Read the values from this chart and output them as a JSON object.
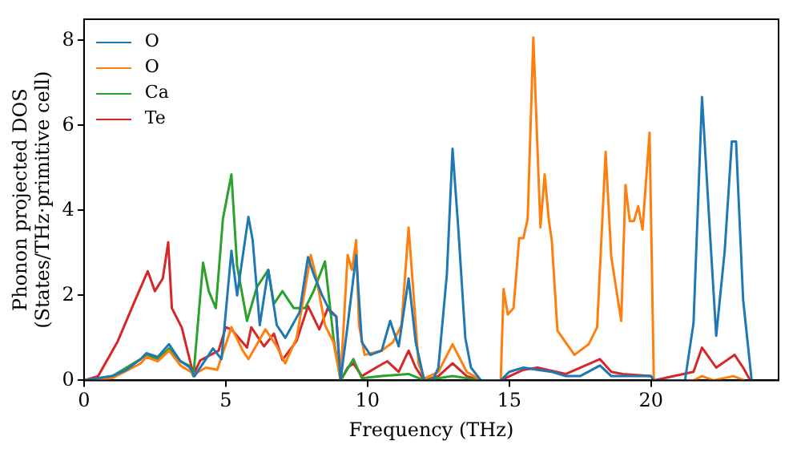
{
  "chart_data": {
    "type": "line",
    "xlabel": "Frequency (THz)",
    "ylabel": "Phonon projected DOS\n(States/THz·primitive cell)",
    "xlim": [
      0,
      24.5
    ],
    "xticks": [
      0,
      5,
      10,
      15,
      20
    ],
    "ylim": [
      0,
      8.5
    ],
    "yticks": [
      0,
      2,
      4,
      6,
      8
    ],
    "grid": false,
    "legend": "top left",
    "marker": "none",
    "line_style": "solid",
    "series": [
      {
        "name": "O",
        "color": "#1f77b4",
        "x": [
          0,
          1,
          1.5,
          2,
          2.2,
          2.6,
          3.0,
          3.4,
          3.75,
          3.9,
          4.2,
          4.55,
          4.85,
          5.2,
          5.4,
          5.8,
          5.95,
          6.2,
          6.5,
          6.8,
          7.1,
          7.6,
          7.9,
          8.1,
          8.4,
          8.7,
          8.9,
          9.05,
          9.3,
          9.6,
          9.8,
          10.1,
          10.5,
          10.8,
          11.1,
          11.45,
          11.7,
          12.0,
          12.3,
          12.5,
          12.8,
          13.0,
          13.2,
          13.45,
          13.65,
          14.0,
          14.7,
          15.0,
          15.5,
          16.0,
          16.5,
          17.0,
          17.5,
          18.2,
          18.6,
          19.0,
          19.5,
          20.0,
          20.1,
          21.2,
          21.5,
          21.8,
          22.1,
          22.3,
          22.6,
          22.85,
          23.0,
          23.25,
          23.55
        ],
        "values": [
          0,
          0.1,
          0.25,
          0.5,
          0.64,
          0.55,
          0.85,
          0.45,
          0.3,
          0.1,
          0.4,
          0.75,
          0.5,
          3.05,
          2.0,
          3.85,
          3.3,
          1.3,
          2.6,
          1.3,
          1.0,
          1.6,
          2.9,
          2.5,
          2.0,
          1.6,
          1.5,
          0,
          1.3,
          2.95,
          0.9,
          0.6,
          0.7,
          1.4,
          0.8,
          2.4,
          0.9,
          0,
          0,
          0.3,
          2.5,
          5.45,
          3.6,
          1.0,
          0.3,
          0,
          0,
          0.2,
          0.3,
          0.25,
          0.2,
          0.1,
          0.1,
          0.35,
          0.1,
          0.1,
          0.1,
          0.1,
          0,
          0,
          1.35,
          6.67,
          3.25,
          1.05,
          3.05,
          5.62,
          5.62,
          1.9,
          0
        ]
      },
      {
        "name": "O",
        "color": "#ff7f0e",
        "x": [
          0,
          1,
          2,
          2.2,
          2.6,
          3.0,
          3.4,
          3.9,
          4.3,
          4.7,
          5.2,
          5.6,
          5.8,
          6.4,
          6.8,
          7.1,
          7.5,
          8.0,
          8.2,
          8.5,
          8.8,
          9.05,
          9.3,
          9.45,
          9.6,
          9.7,
          9.9,
          10.5,
          10.9,
          11.2,
          11.45,
          11.6,
          11.8,
          12.0,
          12.5,
          13.0,
          13.5,
          14.0,
          14.7,
          14.8,
          14.95,
          15.15,
          15.35,
          15.5,
          15.65,
          15.85,
          16.1,
          16.25,
          16.4,
          16.5,
          16.7,
          17.3,
          17.8,
          18.1,
          18.4,
          18.6,
          18.95,
          19.1,
          19.25,
          19.4,
          19.55,
          19.7,
          19.95,
          20.1,
          21.5,
          21.8,
          22.2,
          22.9,
          23.3
        ],
        "values": [
          0,
          0.05,
          0.4,
          0.55,
          0.45,
          0.7,
          0.35,
          0.15,
          0.3,
          0.25,
          1.25,
          0.7,
          0.5,
          1.2,
          0.8,
          0.4,
          1.0,
          2.95,
          2.4,
          1.3,
          0.9,
          0,
          2.95,
          2.6,
          3.3,
          1.3,
          0.6,
          0.7,
          0.9,
          1.3,
          3.6,
          2.25,
          0.4,
          0.04,
          0.2,
          0.85,
          0.2,
          0,
          0,
          2.15,
          1.55,
          1.7,
          3.35,
          3.35,
          3.8,
          8.07,
          3.6,
          4.85,
          3.75,
          3.3,
          1.17,
          0.6,
          0.85,
          1.25,
          5.38,
          2.9,
          1.4,
          4.6,
          3.75,
          3.75,
          4.1,
          3.55,
          5.83,
          0,
          0,
          0.1,
          0,
          0.1,
          0
        ]
      },
      {
        "name": "Ca",
        "color": "#2ca02c",
        "x": [
          0,
          1,
          2,
          2.2,
          2.6,
          3.0,
          3.4,
          3.7,
          3.86,
          4.2,
          4.4,
          4.65,
          4.9,
          5.2,
          5.4,
          5.75,
          6.1,
          6.5,
          6.7,
          7.0,
          7.4,
          7.8,
          8.1,
          8.5,
          8.8,
          9.05,
          9.5,
          9.8,
          10.5,
          11.45,
          12.0,
          13.0,
          14.0
        ],
        "values": [
          0,
          0.1,
          0.5,
          0.6,
          0.5,
          0.75,
          0.45,
          0.35,
          0.1,
          2.77,
          2.1,
          1.7,
          3.8,
          4.85,
          2.7,
          1.4,
          2.2,
          2.6,
          1.8,
          2.1,
          1.7,
          1.7,
          2.1,
          2.8,
          1.0,
          0,
          0.5,
          0.05,
          0.1,
          0.15,
          0,
          0.1,
          0
        ]
      },
      {
        "name": "Te",
        "color": "#d62728",
        "x": [
          0,
          0.5,
          1.19,
          1.78,
          2.25,
          2.5,
          2.78,
          2.97,
          3.1,
          3.45,
          3.65,
          3.86,
          4.1,
          4.75,
          5.0,
          5.2,
          5.75,
          5.9,
          6.35,
          6.7,
          7.0,
          7.5,
          7.9,
          8.3,
          8.6,
          8.9,
          9.05,
          9.3,
          9.5,
          9.8,
          10.3,
          10.7,
          11.1,
          11.45,
          11.7,
          12.0,
          12.5,
          13.0,
          13.5,
          14.0,
          14.7,
          15.5,
          16.0,
          17.0,
          18.2,
          18.6,
          19.0,
          20.0,
          20.1,
          21.5,
          21.8,
          22.3,
          22.95,
          23.25,
          23.5
        ],
        "values": [
          0,
          0.1,
          0.92,
          1.85,
          2.57,
          2.1,
          2.4,
          3.25,
          1.7,
          1.24,
          0.7,
          0.14,
          0.47,
          0.7,
          1.25,
          1.2,
          0.77,
          1.25,
          0.8,
          1.1,
          0.48,
          0.93,
          1.75,
          1.2,
          1.7,
          1.5,
          0,
          0.3,
          0.4,
          0.1,
          0.3,
          0.45,
          0.2,
          0.7,
          0.3,
          0,
          0.1,
          0.4,
          0.1,
          0,
          0,
          0.25,
          0.3,
          0.15,
          0.5,
          0.2,
          0.15,
          0.1,
          0,
          0.2,
          0.77,
          0.3,
          0.6,
          0.3,
          0
        ]
      }
    ]
  }
}
